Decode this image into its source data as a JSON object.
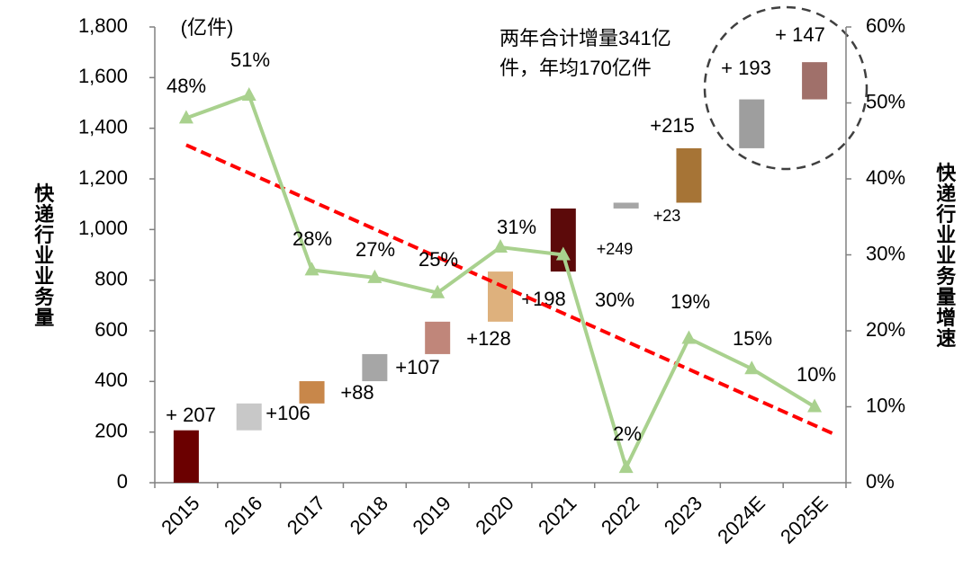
{
  "chart_data": {
    "type": "waterfall",
    "unit_label": "(亿件)",
    "y_label": "快递行业业务量",
    "y2_label": "快递行业业务量增速",
    "categories": [
      "2015",
      "2016",
      "2017",
      "2018",
      "2019",
      "2020",
      "2021",
      "2022",
      "2023",
      "2024E",
      "2025E"
    ],
    "series": [
      {
        "type": "waterfall",
        "values": [
          207,
          106,
          88,
          107,
          128,
          198,
          249,
          23,
          215,
          193,
          147
        ],
        "value_labels": [
          "+ 207",
          "+106",
          "+88",
          "+107",
          "+128",
          "+198",
          "+249",
          "+23",
          "+215",
          "+ 193",
          "+ 147"
        ],
        "colors": [
          "#6b0000",
          "#c8c8c8",
          "#c8874a",
          "#a6a6a6",
          "#c0867a",
          "#deb17d",
          "#5c0a0a",
          "#a6a6a6",
          "#a67436",
          "#9e9e9e",
          "#a0706a"
        ]
      },
      {
        "type": "line",
        "axis": "y2",
        "marker": "triangle",
        "color": "#a9d18e",
        "values": [
          48,
          51,
          28,
          27,
          25,
          31,
          30,
          2,
          19,
          15,
          10
        ],
        "value_labels": [
          "48%",
          "51%",
          "28%",
          "27%",
          "25%",
          "31%",
          "30%",
          "2%",
          "19%",
          "15%",
          "10%"
        ],
        "trendline": {
          "color": "#ff0000",
          "dashed": true
        }
      }
    ],
    "ylim": [
      0,
      1800
    ],
    "yticks": [
      0,
      200,
      400,
      600,
      800,
      {
        "value": 1000,
        "label": "1,000"
      },
      {
        "value": 1200,
        "label": "1,200"
      },
      {
        "value": 1400,
        "label": "1,400"
      },
      {
        "value": 1600,
        "label": "1,600"
      },
      {
        "value": 1800,
        "label": "1,800"
      }
    ],
    "y2lim": [
      0,
      60
    ],
    "y2ticks": [
      {
        "value": 0,
        "label": "0%"
      },
      {
        "value": 10,
        "label": "10%"
      },
      {
        "value": 20,
        "label": "20%"
      },
      {
        "value": 30,
        "label": "30%"
      },
      {
        "value": 40,
        "label": "40%"
      },
      {
        "value": 50,
        "label": "50%"
      },
      {
        "value": 60,
        "label": "60%"
      }
    ],
    "annotation": [
      "两年合计增量341亿",
      "件，年均170亿件"
    ]
  }
}
